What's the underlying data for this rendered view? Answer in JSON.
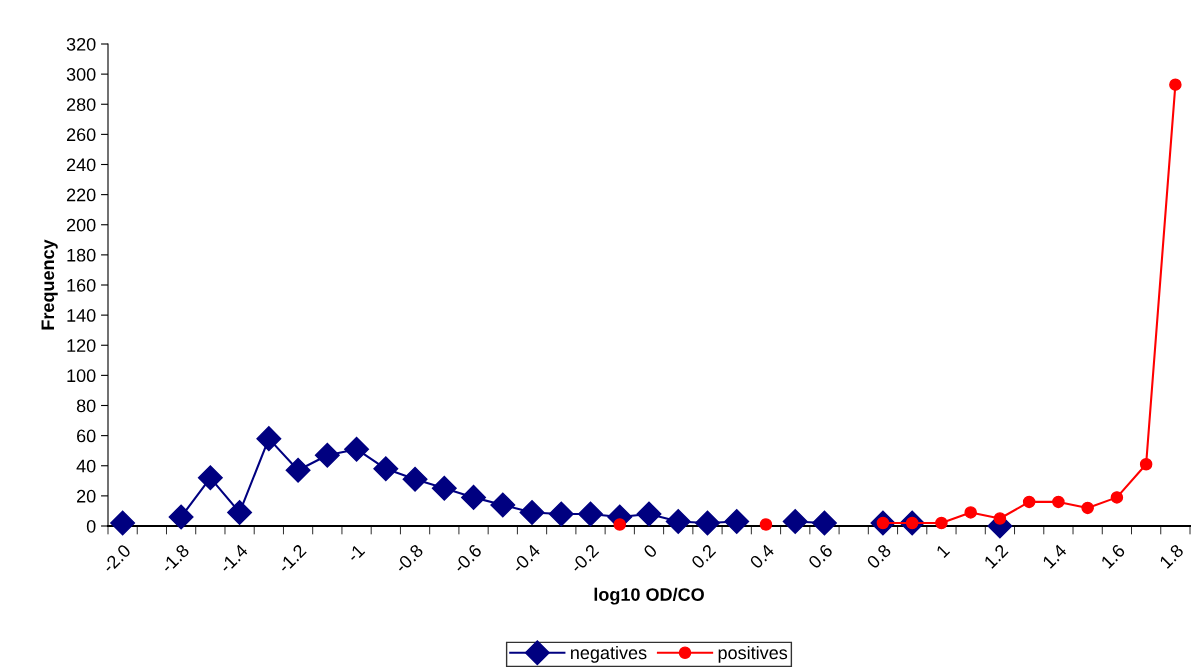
{
  "chart_data": {
    "type": "line",
    "xlabel": "log10 OD/CO",
    "ylabel": "Frequency",
    "categories": [
      "-2.0",
      null,
      "-1.8",
      null,
      "-1.4",
      null,
      "-1.2",
      null,
      "-1",
      null,
      "-0.8",
      null,
      "-0.6",
      null,
      "-0.4",
      null,
      "-0.2",
      null,
      "0",
      null,
      "0.2",
      null,
      "0.4",
      null,
      "0.6",
      null,
      "0.8",
      null,
      "1",
      null,
      "1.2",
      null,
      "1.4",
      null,
      "1.6",
      null,
      "1.8"
    ],
    "series": [
      {
        "name": "negatives",
        "color": "#000080",
        "marker": "diamond",
        "values": [
          2,
          null,
          6,
          32,
          9,
          58,
          37,
          47,
          51,
          38,
          31,
          25,
          19,
          14,
          9,
          8,
          8,
          6,
          8,
          3,
          2,
          3,
          null,
          3,
          2,
          null,
          2,
          2,
          null,
          null,
          0,
          null,
          null,
          null,
          null,
          null,
          null
        ]
      },
      {
        "name": "positives",
        "color": "#ff0000",
        "marker": "circle",
        "values": [
          null,
          null,
          null,
          null,
          null,
          null,
          null,
          null,
          null,
          null,
          null,
          null,
          null,
          null,
          null,
          null,
          null,
          1,
          null,
          null,
          null,
          null,
          1,
          null,
          null,
          null,
          2,
          2,
          2,
          9,
          5,
          16,
          16,
          12,
          19,
          41,
          293
        ]
      }
    ],
    "ylim": [
      0,
      320
    ],
    "yticks": [
      0,
      20,
      40,
      60,
      80,
      100,
      120,
      140,
      160,
      180,
      200,
      220,
      240,
      260,
      280,
      300,
      320
    ],
    "grid": false,
    "legend": "bottom",
    "line_style": "solid"
  }
}
